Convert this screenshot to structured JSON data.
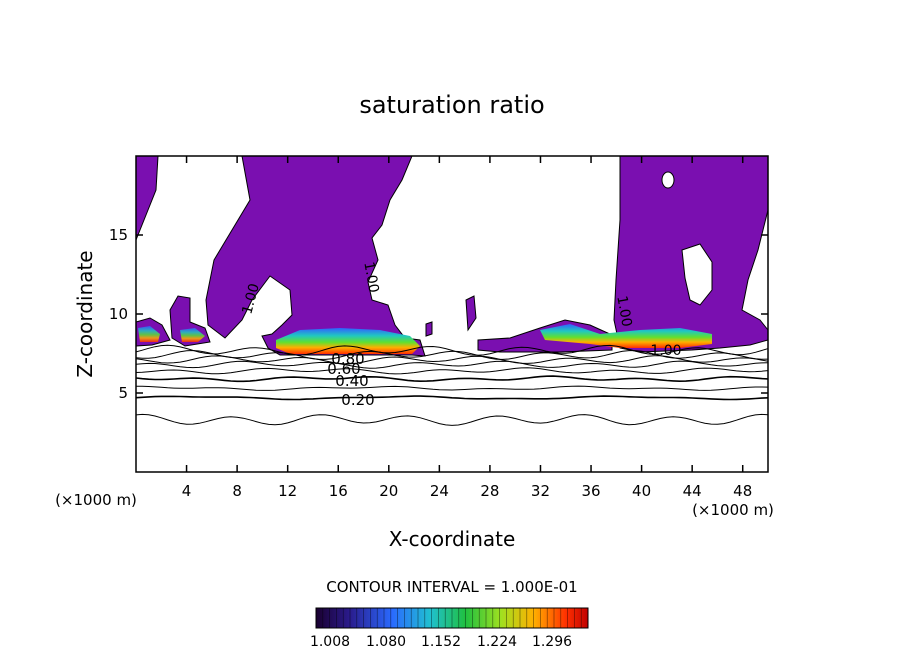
{
  "chart_data": {
    "type": "contour",
    "title": "saturation ratio",
    "xlabel": "X-coordinate",
    "ylabel": "Z-coordinate",
    "x_units": "(×1000 m)",
    "z_units": "(×1000 m)",
    "xlim": [
      0,
      50
    ],
    "ylim": [
      0,
      20
    ],
    "x_ticks": [
      4,
      8,
      12,
      16,
      20,
      24,
      28,
      32,
      36,
      40,
      44,
      48
    ],
    "y_ticks": [
      5,
      10,
      15
    ],
    "contour_interval_text": "CONTOUR INTERVAL = 1.000E-01",
    "contour_labels": [
      "1.00",
      "1.00",
      "1.00",
      "1.00",
      "0.80",
      "0.60",
      "0.40",
      "0.20"
    ],
    "colorbar": {
      "labels": [
        "1.008",
        "1.080",
        "1.152",
        "1.224",
        "1.296"
      ],
      "min": 1.008,
      "max": 1.296
    },
    "fill_color_threshold": "#7a0fb0",
    "contour_levels": [
      {
        "level": 0.2,
        "z": 4.7
      },
      {
        "level": 0.3,
        "z": 5.3
      },
      {
        "level": 0.4,
        "z": 5.9
      },
      {
        "level": 0.5,
        "z": 6.4
      },
      {
        "level": 0.6,
        "z": 6.8
      },
      {
        "level": 0.7,
        "z": 7.1
      },
      {
        "level": 0.8,
        "z": 7.4
      },
      {
        "level": 0.9,
        "z": 7.7
      }
    ],
    "lower_contour_z": 3.3
  }
}
